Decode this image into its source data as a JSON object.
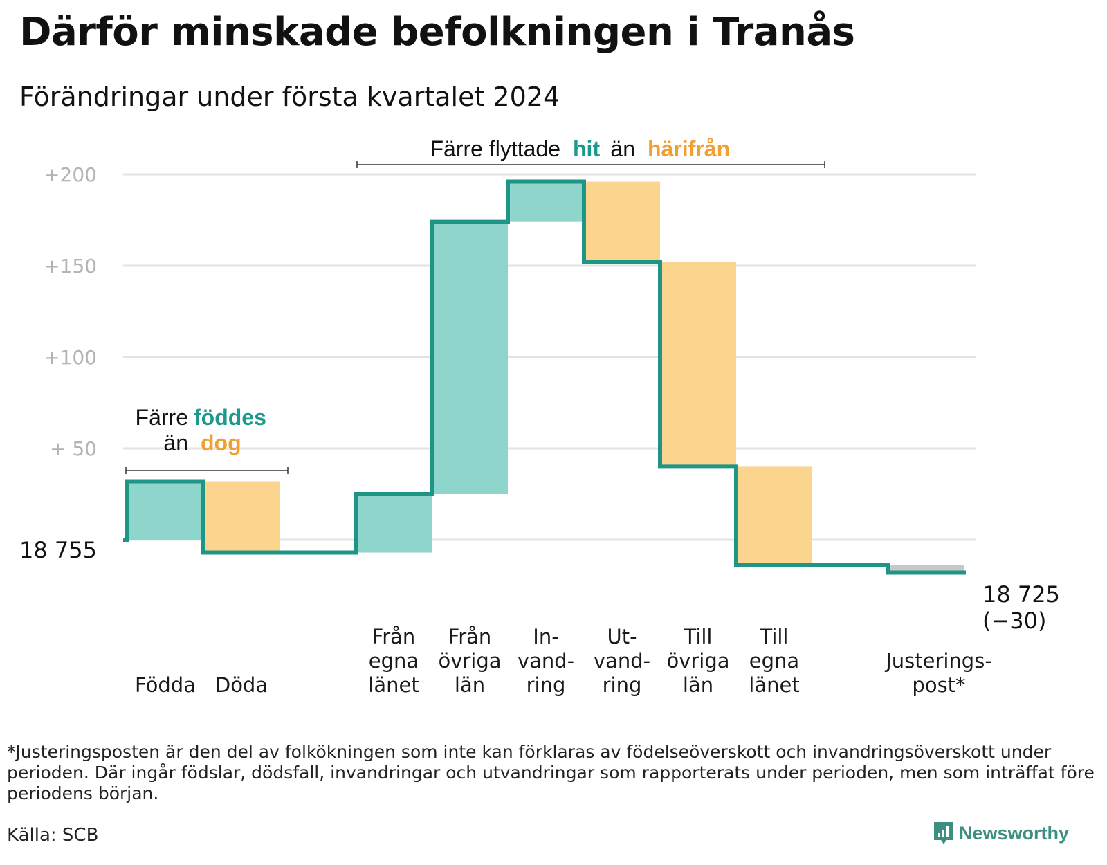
{
  "title": "Därför minskade befolkningen i Tranås",
  "subtitle": "Förändringar under första kvartalet 2024",
  "chart_data": {
    "type": "waterfall",
    "start_label": "18  755",
    "end_label_value": "18 725",
    "end_label_change": "(−30)",
    "start_value": 0,
    "ylim": [
      -35,
      200
    ],
    "yticks": [
      {
        "value": 200,
        "label": "+200"
      },
      {
        "value": 150,
        "label": "+150"
      },
      {
        "value": 100,
        "label": "+100"
      },
      {
        "value": 50,
        "label": "+  50"
      },
      {
        "value": 0,
        "label": ""
      }
    ],
    "steps": [
      {
        "name": "Födda",
        "label_lines": [
          "Födda"
        ],
        "delta": 32,
        "kind": "in"
      },
      {
        "name": "Döda",
        "label_lines": [
          "Döda"
        ],
        "delta": -39,
        "kind": "out"
      },
      {
        "name": "gap",
        "label_lines": [],
        "delta": 0,
        "kind": "none"
      },
      {
        "name": "Från egna länet",
        "label_lines": [
          "Från",
          "egna",
          "länet"
        ],
        "delta": 32,
        "kind": "in"
      },
      {
        "name": "Från övriga län",
        "label_lines": [
          "Från",
          "övriga",
          "län"
        ],
        "delta": 149,
        "kind": "in"
      },
      {
        "name": "Invandring",
        "label_lines": [
          "In-",
          "vand-",
          "ring"
        ],
        "delta": 22,
        "kind": "in"
      },
      {
        "name": "Utvandring",
        "label_lines": [
          "Ut-",
          "vand-",
          "ring"
        ],
        "delta": -44,
        "kind": "out"
      },
      {
        "name": "Till övriga län",
        "label_lines": [
          "Till",
          "övriga",
          "län"
        ],
        "delta": -112,
        "kind": "out"
      },
      {
        "name": "Till egna länet",
        "label_lines": [
          "Till",
          "egna",
          "länet"
        ],
        "delta": -54,
        "kind": "out"
      },
      {
        "name": "gap",
        "label_lines": [],
        "delta": 0,
        "kind": "none"
      },
      {
        "name": "Justeringspost*",
        "label_lines": [
          "Justerings-",
          "post*"
        ],
        "delta": -4,
        "kind": "adj"
      }
    ],
    "colors": {
      "in": "#8ed5cc",
      "out": "#fbd58e",
      "adj": "#c8c8c8",
      "line": "#1f9585"
    },
    "annotations": {
      "births": {
        "line1_a": "Färre",
        "line1_b": "föddes",
        "line2_a": "än",
        "line2_b": "dog"
      },
      "moves": {
        "a": "Färre flyttade",
        "b": "hit",
        "c": "än",
        "d": "härifrån"
      }
    }
  },
  "footnote": "*Justeringsposten är den del av folkökningen som inte kan förklaras av födelseöverskott och invandringsöverskott under perioden. Där ingår födslar, dödsfall, invandringar och utvandringar som rapporterats under perioden, men som inträffat före periodens början.",
  "source": "Källa: SCB",
  "brand": "Newsworthy"
}
